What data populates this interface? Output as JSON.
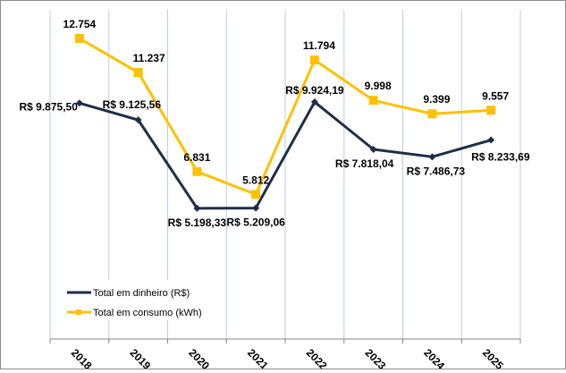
{
  "chart_data": {
    "type": "line",
    "title": "",
    "xlabel": "",
    "ylabel": "",
    "categories": [
      "2018",
      "2019",
      "2020",
      "2021",
      "2022",
      "2023",
      "2024",
      "2025"
    ],
    "ylim": [
      0,
      14000
    ],
    "grid": "vertical",
    "legend_placement": "bottom-left",
    "series": [
      {
        "name": "Total em dinheiro (R$)",
        "color": "#1F2D48",
        "marker": "diamond",
        "values": [
          9875.5,
          9125.56,
          5198.33,
          5209.06,
          9924.19,
          7818.04,
          7486.73,
          8233.69
        ],
        "labels": [
          "R$ 9.875,50",
          "R$ 9.125,56",
          "R$ 5.198,33",
          "R$ 5.209,06",
          "R$ 9.924,19",
          "R$ 7.818,04",
          "R$ 7.486,73",
          "R$ 8.233,69"
        ]
      },
      {
        "name": "Total em consumo (kWh)",
        "color": "#FFC000",
        "marker": "square",
        "values": [
          12754,
          11237,
          6831,
          5812,
          11794,
          9998,
          9399,
          9557
        ],
        "labels": [
          "12.754",
          "11.237",
          "6.831",
          "5.812",
          "11.794",
          "9.998",
          "9.399",
          "9.557"
        ]
      }
    ]
  }
}
